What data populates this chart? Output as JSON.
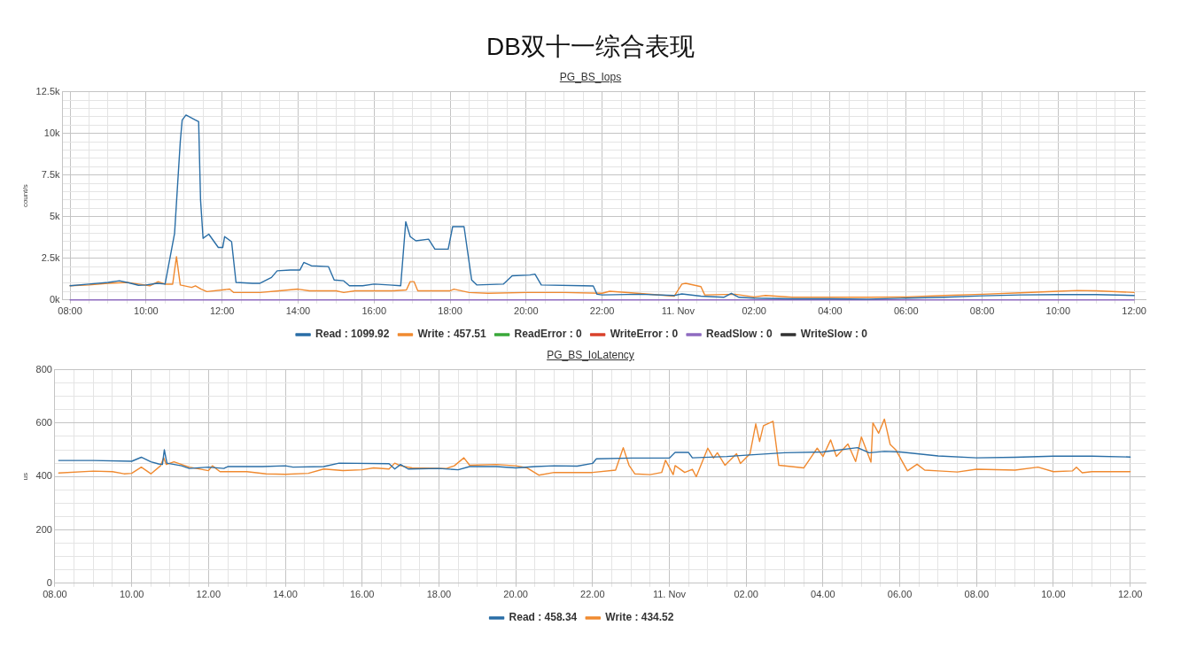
{
  "chart_data": [
    {
      "type": "line",
      "title": "PG_BS_Iops",
      "annotations": [
        "DB双十一综合表现"
      ],
      "ylabel": "count/s",
      "xlim": [
        "--11-10T07:48",
        "--11-11T12:18"
      ],
      "ylim": [
        0,
        12500
      ],
      "xticks": [
        {
          "value": "--11-10T08:00",
          "label": "08:00"
        },
        {
          "value": "--11-10T08:30",
          "label": null
        },
        {
          "value": "--11-10T09:00",
          "label": null
        },
        {
          "value": "--11-10T09:30",
          "label": null
        },
        {
          "value": "--11-10T10:00",
          "label": "10:00"
        },
        {
          "value": "--11-10T10:30",
          "label": null
        },
        {
          "value": "--11-10T11:00",
          "label": null
        },
        {
          "value": "--11-10T11:30",
          "label": null
        },
        {
          "value": "--11-10T12:00",
          "label": "12:00"
        },
        {
          "value": "--11-10T12:30",
          "label": null
        },
        {
          "value": "--11-10T13:00",
          "label": null
        },
        {
          "value": "--11-10T13:30",
          "label": null
        },
        {
          "value": "--11-10T14:00",
          "label": "14:00"
        },
        {
          "value": "--11-10T14:30",
          "label": null
        },
        {
          "value": "--11-10T15:00",
          "label": null
        },
        {
          "value": "--11-10T15:30",
          "label": null
        },
        {
          "value": "--11-10T16:00",
          "label": "16:00"
        },
        {
          "value": "--11-10T16:30",
          "label": null
        },
        {
          "value": "--11-10T17:00",
          "label": null
        },
        {
          "value": "--11-10T17:30",
          "label": null
        },
        {
          "value": "--11-10T18:00",
          "label": "18:00"
        },
        {
          "value": "--11-10T18:30",
          "label": null
        },
        {
          "value": "--11-10T19:00",
          "label": null
        },
        {
          "value": "--11-10T19:30",
          "label": null
        },
        {
          "value": "--11-10T20:00",
          "label": "20:00"
        },
        {
          "value": "--11-10T20:30",
          "label": null
        },
        {
          "value": "--11-10T21:00",
          "label": null
        },
        {
          "value": "--11-10T21:30",
          "label": null
        },
        {
          "value": "--11-10T22:00",
          "label": "22:00"
        },
        {
          "value": "--11-10T22:30",
          "label": null
        },
        {
          "value": "--11-10T23:00",
          "label": null
        },
        {
          "value": "--11-10T23:30",
          "label": null
        },
        {
          "value": "--11-11T00:00",
          "label": "11. Nov"
        },
        {
          "value": "--11-11T00:30",
          "label": null
        },
        {
          "value": "--11-11T01:00",
          "label": null
        },
        {
          "value": "--11-11T01:30",
          "label": null
        },
        {
          "value": "--11-11T02:00",
          "label": "02:00"
        },
        {
          "value": "--11-11T02:30",
          "label": null
        },
        {
          "value": "--11-11T03:00",
          "label": null
        },
        {
          "value": "--11-11T03:30",
          "label": null
        },
        {
          "value": "--11-11T04:00",
          "label": "04:00"
        },
        {
          "value": "--11-11T04:30",
          "label": null
        },
        {
          "value": "--11-11T05:00",
          "label": null
        },
        {
          "value": "--11-11T05:30",
          "label": null
        },
        {
          "value": "--11-11T06:00",
          "label": "06:00"
        },
        {
          "value": "--11-11T06:30",
          "label": null
        },
        {
          "value": "--11-11T07:00",
          "label": null
        },
        {
          "value": "--11-11T07:30",
          "label": null
        },
        {
          "value": "--11-11T08:00",
          "label": "08:00"
        },
        {
          "value": "--11-11T08:30",
          "label": null
        },
        {
          "value": "--11-11T09:00",
          "label": null
        },
        {
          "value": "--11-11T09:30",
          "label": null
        },
        {
          "value": "--11-11T10:00",
          "label": "10:00"
        },
        {
          "value": "--11-11T10:30",
          "label": null
        },
        {
          "value": "--11-11T11:00",
          "label": null
        },
        {
          "value": "--11-11T11:30",
          "label": null
        },
        {
          "value": "--11-11T12:00",
          "label": "12:00"
        }
      ],
      "yticks": [
        {
          "value": 0,
          "label": "0k"
        },
        {
          "value": 500,
          "label": null
        },
        {
          "value": 1000,
          "label": null
        },
        {
          "value": 1500,
          "label": null
        },
        {
          "value": 2000,
          "label": null
        },
        {
          "value": 2500,
          "label": "2.5k"
        },
        {
          "value": 3000,
          "label": null
        },
        {
          "value": 3500,
          "label": null
        },
        {
          "value": 4000,
          "label": null
        },
        {
          "value": 4500,
          "label": null
        },
        {
          "value": 5000,
          "label": "5k"
        },
        {
          "value": 5500,
          "label": null
        },
        {
          "value": 6000,
          "label": null
        },
        {
          "value": 6500,
          "label": null
        },
        {
          "value": 7000,
          "label": null
        },
        {
          "value": 7500,
          "label": "7.5k"
        },
        {
          "value": 8000,
          "label": null
        },
        {
          "value": 8500,
          "label": null
        },
        {
          "value": 9000,
          "label": null
        },
        {
          "value": 9500,
          "label": null
        },
        {
          "value": 10000,
          "label": "10k"
        },
        {
          "value": 10500,
          "label": null
        },
        {
          "value": 11000,
          "label": null
        },
        {
          "value": 11500,
          "label": null
        },
        {
          "value": 12000,
          "label": null
        },
        {
          "value": 12500,
          "label": "12.5k"
        }
      ],
      "grid": true,
      "legend": "bottom",
      "marker": "none",
      "line_style": "solid",
      "series": [
        {
          "name": "Read : 1099.92",
          "color": "#2a6ea6",
          "x": [
            "--11-10T08:00",
            "--11-10T08:30",
            "--11-10T09:00",
            "--11-10T09:18",
            "--11-10T09:36",
            "--11-10T09:48",
            "--11-10T10:00",
            "--11-10T10:18",
            "--11-10T10:30",
            "--11-10T10:45",
            "--11-10T10:54",
            "--11-10T10:57",
            "--11-10T11:03",
            "--11-10T11:18",
            "--11-10T11:23",
            "--11-10T11:26",
            "--11-10T11:30",
            "--11-10T11:39",
            "--11-10T11:54",
            "--11-10T12:01",
            "--11-10T12:04",
            "--11-10T12:15",
            "--11-10T12:22",
            "--11-10T12:48",
            "--11-10T13:00",
            "--11-10T13:18",
            "--11-10T13:27",
            "--11-10T13:48",
            "--11-10T14:03",
            "--11-10T14:09",
            "--11-10T14:21",
            "--11-10T14:48",
            "--11-10T14:57",
            "--11-10T15:12",
            "--11-10T15:21",
            "--11-10T15:42",
            "--11-10T16:00",
            "--11-10T16:24",
            "--11-10T16:42",
            "--11-10T16:50",
            "--11-10T16:57",
            "--11-10T17:06",
            "--11-10T17:26",
            "--11-10T17:36",
            "--11-10T17:57",
            "--11-10T18:04",
            "--11-10T18:22",
            "--11-10T18:34",
            "--11-10T18:42",
            "--11-10T19:24",
            "--11-10T19:38",
            "--11-10T20:06",
            "--11-10T20:14",
            "--11-10T20:24",
            "--11-10T21:30",
            "--11-10T21:46",
            "--11-10T21:52",
            "--11-10T22:00",
            "--11-10T23:00",
            "--11-10T23:54",
            "--11-11T00:06",
            "--11-11T00:36",
            "--11-11T01:12",
            "--11-11T01:24",
            "--11-11T01:36",
            "--11-11T02:00",
            "--11-11T03:00",
            "--11-11T04:00",
            "--11-11T05:00",
            "--11-11T06:00",
            "--11-11T07:00",
            "--11-11T08:00",
            "--11-11T09:00",
            "--11-11T10:00",
            "--11-11T11:00",
            "--11-11T12:00"
          ],
          "values": [
            850,
            950,
            1050,
            1150,
            1000,
            880,
            900,
            1000,
            950,
            4000,
            9500,
            10800,
            11100,
            10800,
            10700,
            6000,
            3700,
            3950,
            3150,
            3150,
            3800,
            3500,
            1050,
            1000,
            1000,
            1350,
            1750,
            1800,
            1800,
            2250,
            2050,
            2000,
            1200,
            1150,
            850,
            850,
            950,
            900,
            850,
            4700,
            3800,
            3550,
            3650,
            3050,
            3050,
            4400,
            4400,
            1200,
            900,
            950,
            1450,
            1500,
            1550,
            900,
            850,
            840,
            340,
            300,
            340,
            270,
            360,
            230,
            160,
            400,
            160,
            110,
            70,
            70,
            50,
            110,
            160,
            250,
            300,
            320,
            320,
            270
          ]
        },
        {
          "name": "Write : 457.51",
          "color": "#f08a30",
          "x": [
            "--11-10T08:00",
            "--11-10T08:30",
            "--11-10T09:00",
            "--11-10T09:30",
            "--11-10T09:48",
            "--11-10T10:06",
            "--11-10T10:19",
            "--11-10T10:30",
            "--11-10T10:42",
            "--11-10T10:48",
            "--11-10T10:54",
            "--11-10T11:12",
            "--11-10T11:18",
            "--11-10T11:27",
            "--11-10T11:36",
            "--11-10T12:00",
            "--11-10T12:12",
            "--11-10T12:18",
            "--11-10T13:00",
            "--11-10T13:30",
            "--11-10T14:00",
            "--11-10T14:18",
            "--11-10T15:00",
            "--11-10T15:12",
            "--11-10T15:30",
            "--11-10T16:30",
            "--11-10T16:51",
            "--11-10T16:57",
            "--11-10T17:03",
            "--11-10T17:09",
            "--11-10T18:00",
            "--11-10T18:06",
            "--11-10T18:30",
            "--11-10T19:00",
            "--11-10T20:00",
            "--11-10T21:00",
            "--11-10T22:00",
            "--11-10T22:12",
            "--11-10T23:00",
            "--11-10T23:54",
            "--11-11T00:06",
            "--11-11T00:12",
            "--11-11T00:36",
            "--11-11T00:42",
            "--11-11T01:30",
            "--11-11T02:00",
            "--11-11T02:18",
            "--11-11T03:00",
            "--11-11T04:00",
            "--11-11T05:00",
            "--11-11T06:00",
            "--11-11T07:00",
            "--11-11T08:00",
            "--11-11T09:00",
            "--11-11T10:00",
            "--11-11T10:30",
            "--11-11T11:00",
            "--11-11T12:00"
          ],
          "values": [
            850,
            900,
            1000,
            1050,
            950,
            850,
            1100,
            950,
            950,
            2600,
            900,
            750,
            850,
            650,
            500,
            600,
            650,
            450,
            450,
            550,
            650,
            550,
            550,
            450,
            550,
            550,
            600,
            1100,
            1100,
            550,
            550,
            650,
            450,
            400,
            450,
            450,
            400,
            520,
            390,
            230,
            950,
            1000,
            800,
            300,
            340,
            180,
            270,
            160,
            160,
            160,
            180,
            270,
            340,
            430,
            520,
            570,
            550,
            450
          ]
        },
        {
          "name": "ReadError : 0",
          "color": "#3aa83a"
        },
        {
          "name": "WriteError : 0",
          "color": "#d9412b"
        },
        {
          "name": "ReadSlow : 0",
          "color": "#8e6bc0",
          "x": [
            "--11-10T08:00",
            "--11-11T12:00"
          ],
          "values": [
            0,
            0
          ]
        },
        {
          "name": "WriteSlow : 0",
          "color": "#333333"
        }
      ]
    },
    {
      "type": "line",
      "title": "PG_BS_IoLatency",
      "ylabel": "us",
      "xlim": [
        "--11-10T08:00",
        "--11-11T12:24"
      ],
      "ylim": [
        0,
        800
      ],
      "xticks": [
        {
          "value": "--11-10T08:00",
          "label": "08.00"
        },
        {
          "value": "--11-10T08:30",
          "label": null
        },
        {
          "value": "--11-10T09:00",
          "label": null
        },
        {
          "value": "--11-10T09:30",
          "label": null
        },
        {
          "value": "--11-10T10:00",
          "label": "10.00"
        },
        {
          "value": "--11-10T10:30",
          "label": null
        },
        {
          "value": "--11-10T11:00",
          "label": null
        },
        {
          "value": "--11-10T11:30",
          "label": null
        },
        {
          "value": "--11-10T12:00",
          "label": "12.00"
        },
        {
          "value": "--11-10T12:30",
          "label": null
        },
        {
          "value": "--11-10T13:00",
          "label": null
        },
        {
          "value": "--11-10T13:30",
          "label": null
        },
        {
          "value": "--11-10T14:00",
          "label": "14.00"
        },
        {
          "value": "--11-10T14:30",
          "label": null
        },
        {
          "value": "--11-10T15:00",
          "label": null
        },
        {
          "value": "--11-10T15:30",
          "label": null
        },
        {
          "value": "--11-10T16:00",
          "label": "16.00"
        },
        {
          "value": "--11-10T16:30",
          "label": null
        },
        {
          "value": "--11-10T17:00",
          "label": null
        },
        {
          "value": "--11-10T17:30",
          "label": null
        },
        {
          "value": "--11-10T18:00",
          "label": "18.00"
        },
        {
          "value": "--11-10T18:30",
          "label": null
        },
        {
          "value": "--11-10T19:00",
          "label": null
        },
        {
          "value": "--11-10T19:30",
          "label": null
        },
        {
          "value": "--11-10T20:00",
          "label": "20.00"
        },
        {
          "value": "--11-10T20:30",
          "label": null
        },
        {
          "value": "--11-10T21:00",
          "label": null
        },
        {
          "value": "--11-10T21:30",
          "label": null
        },
        {
          "value": "--11-10T22:00",
          "label": "22.00"
        },
        {
          "value": "--11-10T22:30",
          "label": null
        },
        {
          "value": "--11-10T23:00",
          "label": null
        },
        {
          "value": "--11-10T23:30",
          "label": null
        },
        {
          "value": "--11-11T00:00",
          "label": "11. Nov"
        },
        {
          "value": "--11-11T00:30",
          "label": null
        },
        {
          "value": "--11-11T01:00",
          "label": null
        },
        {
          "value": "--11-11T01:30",
          "label": null
        },
        {
          "value": "--11-11T02:00",
          "label": "02.00"
        },
        {
          "value": "--11-11T02:30",
          "label": null
        },
        {
          "value": "--11-11T03:00",
          "label": null
        },
        {
          "value": "--11-11T03:30",
          "label": null
        },
        {
          "value": "--11-11T04:00",
          "label": "04.00"
        },
        {
          "value": "--11-11T04:30",
          "label": null
        },
        {
          "value": "--11-11T05:00",
          "label": null
        },
        {
          "value": "--11-11T05:30",
          "label": null
        },
        {
          "value": "--11-11T06:00",
          "label": "06.00"
        },
        {
          "value": "--11-11T06:30",
          "label": null
        },
        {
          "value": "--11-11T07:00",
          "label": null
        },
        {
          "value": "--11-11T07:30",
          "label": null
        },
        {
          "value": "--11-11T08:00",
          "label": "08.00"
        },
        {
          "value": "--11-11T08:30",
          "label": null
        },
        {
          "value": "--11-11T09:00",
          "label": null
        },
        {
          "value": "--11-11T09:30",
          "label": null
        },
        {
          "value": "--11-11T10:00",
          "label": "10.00"
        },
        {
          "value": "--11-11T10:30",
          "label": null
        },
        {
          "value": "--11-11T11:00",
          "label": null
        },
        {
          "value": "--11-11T11:30",
          "label": null
        },
        {
          "value": "--11-11T12:00",
          "label": "12.00"
        }
      ],
      "yticks": [
        0,
        {
          "value": 50,
          "label": null
        },
        {
          "value": 100,
          "label": null
        },
        {
          "value": 150,
          "label": null
        },
        200,
        {
          "value": 250,
          "label": null
        },
        {
          "value": 300,
          "label": null
        },
        {
          "value": 350,
          "label": null
        },
        400,
        {
          "value": 450,
          "label": null
        },
        {
          "value": 500,
          "label": null
        },
        {
          "value": 550,
          "label": null
        },
        600,
        {
          "value": 650,
          "label": null
        },
        {
          "value": 700,
          "label": null
        },
        {
          "value": 750,
          "label": null
        },
        800
      ],
      "grid": true,
      "legend": "bottom",
      "marker": "none",
      "line_style": "solid",
      "series": [
        {
          "name": "Read : 458.34",
          "color": "#2a6ea6",
          "x": [
            "--11-10T08:06",
            "--11-10T09:00",
            "--11-10T10:00",
            "--11-10T10:15",
            "--11-10T10:30",
            "--11-10T10:42",
            "--11-10T10:48",
            "--11-10T10:51",
            "--11-10T10:55",
            "--11-10T11:18",
            "--11-10T11:30",
            "--11-10T12:00",
            "--11-10T12:24",
            "--11-10T12:30",
            "--11-10T13:24",
            "--11-10T14:00",
            "--11-10T14:12",
            "--11-10T15:00",
            "--11-10T15:24",
            "--11-10T16:42",
            "--11-10T16:51",
            "--11-10T17:00",
            "--11-10T17:12",
            "--11-10T18:00",
            "--11-10T18:30",
            "--11-10T18:48",
            "--11-10T19:30",
            "--11-10T20:00",
            "--11-10T20:30",
            "--11-10T21:00",
            "--11-10T21:36",
            "--11-10T22:00",
            "--11-10T22:06",
            "--11-10T23:00",
            "--11-11T00:00",
            "--11-11T00:09",
            "--11-11T00:30",
            "--11-11T00:36",
            "--11-11T01:30",
            "--11-11T02:00",
            "--11-11T03:00",
            "--11-11T04:00",
            "--11-11T04:54",
            "--11-11T05:12",
            "--11-11T05:36",
            "--11-11T06:00",
            "--11-11T07:00",
            "--11-11T08:00",
            "--11-11T09:00",
            "--11-11T10:00",
            "--11-11T11:00",
            "--11-11T12:00"
          ],
          "values": [
            460,
            460,
            457,
            472,
            455,
            447,
            445,
            500,
            450,
            440,
            430,
            435,
            430,
            437,
            437,
            440,
            435,
            437,
            450,
            448,
            428,
            445,
            428,
            430,
            425,
            437,
            437,
            432,
            437,
            440,
            439,
            449,
            466,
            469,
            469,
            490,
            490,
            470,
            475,
            480,
            489,
            492,
            508,
            489,
            494,
            492,
            477,
            470,
            472,
            476,
            476,
            473
          ]
        },
        {
          "name": "Write : 434.52",
          "color": "#f08a30",
          "x": [
            "--11-10T08:06",
            "--11-10T09:00",
            "--11-10T09:30",
            "--11-10T09:48",
            "--11-10T10:00",
            "--11-10T10:15",
            "--11-10T10:30",
            "--11-10T10:45",
            "--11-10T10:50",
            "--11-10T10:54",
            "--11-10T11:06",
            "--11-10T11:30",
            "--11-10T12:00",
            "--11-10T12:06",
            "--11-10T12:18",
            "--11-10T13:00",
            "--11-10T13:30",
            "--11-10T14:00",
            "--11-10T14:36",
            "--11-10T15:00",
            "--11-10T15:30",
            "--11-10T16:00",
            "--11-10T16:18",
            "--11-10T16:42",
            "--11-10T16:51",
            "--11-10T17:00",
            "--11-10T17:18",
            "--11-10T18:12",
            "--11-10T18:24",
            "--11-10T18:39",
            "--11-10T18:48",
            "--11-10T19:30",
            "--11-10T20:00",
            "--11-10T20:18",
            "--11-10T20:36",
            "--11-10T21:00",
            "--11-10T22:00",
            "--11-10T22:36",
            "--11-10T22:48",
            "--11-10T22:57",
            "--11-10T23:06",
            "--11-10T23:30",
            "--11-10T23:48",
            "--11-10T23:54",
            "--11-11T00:06",
            "--11-11T00:09",
            "--11-11T00:24",
            "--11-11T00:36",
            "--11-11T00:42",
            "--11-11T01:00",
            "--11-11T01:09",
            "--11-11T01:15",
            "--11-11T01:27",
            "--11-11T01:45",
            "--11-11T01:51",
            "--11-11T02:06",
            "--11-11T02:15",
            "--11-11T02:21",
            "--11-11T02:27",
            "--11-11T02:42",
            "--11-11T02:51",
            "--11-11T03:30",
            "--11-11T03:51",
            "--11-11T04:00",
            "--11-11T04:12",
            "--11-11T04:21",
            "--11-11T04:39",
            "--11-11T04:51",
            "--11-11T05:00",
            "--11-11T05:15",
            "--11-11T05:18",
            "--11-11T05:27",
            "--11-11T05:36",
            "--11-11T05:45",
            "--11-11T05:54",
            "--11-11T06:12",
            "--11-11T06:27",
            "--11-11T06:39",
            "--11-11T07:00",
            "--11-11T07:30",
            "--11-11T08:00",
            "--11-11T09:00",
            "--11-11T09:36",
            "--11-11T10:00",
            "--11-11T10:30",
            "--11-11T10:36",
            "--11-11T10:45",
            "--11-11T11:00",
            "--11-11T12:00"
          ],
          "values": [
            413,
            420,
            418,
            410,
            412,
            435,
            410,
            440,
            470,
            445,
            455,
            435,
            422,
            440,
            418,
            418,
            410,
            408,
            412,
            428,
            422,
            425,
            432,
            428,
            450,
            440,
            432,
            430,
            440,
            470,
            442,
            445,
            440,
            432,
            405,
            415,
            415,
            424,
            508,
            442,
            410,
            407,
            415,
            461,
            407,
            441,
            415,
            427,
            399,
            506,
            469,
            489,
            442,
            485,
            449,
            485,
            597,
            531,
            590,
            607,
            442,
            432,
            506,
            475,
            537,
            475,
            522,
            456,
            548,
            454,
            601,
            562,
            615,
            520,
            499,
            421,
            446,
            424,
            421,
            417,
            427,
            424,
            435,
            418,
            421,
            435,
            414,
            418,
            418
          ]
        }
      ]
    }
  ]
}
